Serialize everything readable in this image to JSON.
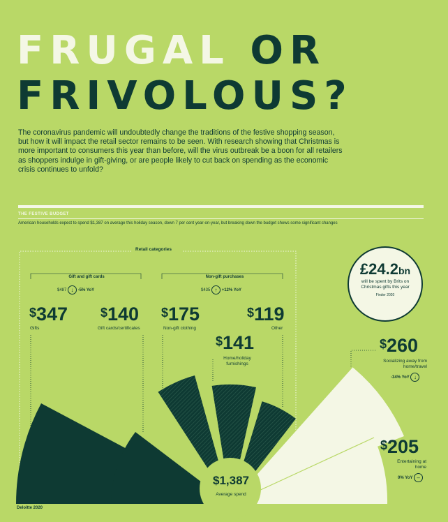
{
  "title": {
    "line1_a": "FRUGAL ",
    "line1_b": "OR",
    "line2": "FRIVOLOUS?"
  },
  "intro": "The coronavirus pandemic will undoubtedly change the traditions of the festive shopping season, but how it will impact the retail sector remains to be seen. With research showing that Christmas is more important to consumers this year than before, will the virus outbreak be a boon for all retailers as shoppers indulge in gift-giving, or are people likely to cut back on spending as the economic crisis continues to unfold?",
  "section": {
    "title": "THE FESTIVE BUDGET",
    "subtitle": "American households expect to spend $1,387 on average this holiday season, down 7 per cent year-on-year, but breaking down the budget shows some significant changes"
  },
  "retail_label": "Retail categories",
  "groups": {
    "gift": {
      "title": "Gift and gift cards",
      "value": "$487",
      "change": "-5% YoY"
    },
    "nongift": {
      "title": "Non-gift purchases",
      "value": "$435",
      "change": "+12% YoY"
    }
  },
  "items": {
    "gifts": {
      "cur": "$",
      "num": "347",
      "label": "Gifts"
    },
    "giftcards": {
      "cur": "$",
      "num": "140",
      "label": "Gift cards/certificates"
    },
    "clothing": {
      "cur": "$",
      "num": "175",
      "label": "Non-gift clothing"
    },
    "other": {
      "cur": "$",
      "num": "119",
      "label": "Other"
    },
    "home": {
      "cur": "$",
      "num": "141",
      "label": "Home/holiday furnishings"
    },
    "social": {
      "cur": "$",
      "num": "260",
      "label": "Socializing away from home/travel",
      "change": "-34% YoY"
    },
    "entertain": {
      "cur": "$",
      "num": "205",
      "label": "Entertaining at home",
      "change": "0% YoY"
    }
  },
  "total": {
    "value": "$1,387",
    "label": "Average spend"
  },
  "callout": {
    "value": "£24.2",
    "unit": "bn",
    "text": "will be spent by Brits on Christmas gifts this year",
    "source": "Finder 2020"
  },
  "footer": "Deloitte 2020",
  "colors": {
    "background": "#b9d867",
    "dark": "#0e3a33",
    "cream": "#f4f7e5"
  },
  "icons": [
    "arrow-down-icon",
    "arrow-up-icon",
    "dash-icon"
  ]
}
